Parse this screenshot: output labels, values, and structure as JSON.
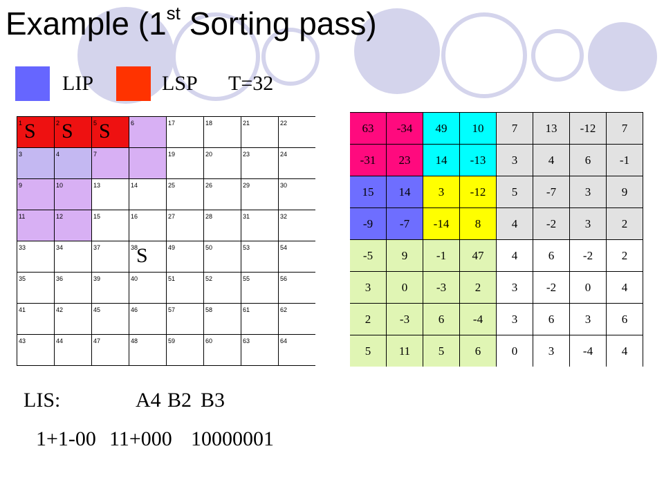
{
  "title": {
    "main": "Example (1",
    "sup": "st",
    "rest": " Sorting pass)"
  },
  "legend": {
    "lip_color": "#6666ff",
    "lsp_color": "#ff3300",
    "lip_label": "LIP",
    "lsp_label": "LSP",
    "threshold": "T=32"
  },
  "left_grid": {
    "rows": [
      [
        {
          "n": "1",
          "s": "S",
          "c": "#ee1111"
        },
        {
          "n": "2",
          "s": "S",
          "c": "#ee1111"
        },
        {
          "n": "5",
          "s": "S",
          "c": "#ee1111"
        },
        {
          "n": "6",
          "s": "",
          "c": "#d8b0f4"
        },
        {
          "n": "17",
          "s": "",
          "c": "#ffffff"
        },
        {
          "n": "18",
          "s": "",
          "c": "#ffffff"
        },
        {
          "n": "21",
          "s": "",
          "c": "#ffffff"
        },
        {
          "n": "22",
          "s": "",
          "c": "#ffffff"
        }
      ],
      [
        {
          "n": "3",
          "s": "",
          "c": "#c4b8f2"
        },
        {
          "n": "4",
          "s": "",
          "c": "#c4b8f2"
        },
        {
          "n": "7",
          "s": "",
          "c": "#d8b0f4"
        },
        {
          "n": "",
          "s": "",
          "c": "#d8b0f4"
        },
        {
          "n": "19",
          "s": "",
          "c": "#ffffff"
        },
        {
          "n": "20",
          "s": "",
          "c": "#ffffff"
        },
        {
          "n": "23",
          "s": "",
          "c": "#ffffff"
        },
        {
          "n": "24",
          "s": "",
          "c": "#ffffff"
        }
      ],
      [
        {
          "n": "9",
          "s": "",
          "c": "#d8b0f4"
        },
        {
          "n": "10",
          "s": "",
          "c": "#d8b0f4"
        },
        {
          "n": "13",
          "s": "",
          "c": "#ffffff"
        },
        {
          "n": "14",
          "s": "",
          "c": "#ffffff"
        },
        {
          "n": "25",
          "s": "",
          "c": "#ffffff"
        },
        {
          "n": "26",
          "s": "",
          "c": "#ffffff"
        },
        {
          "n": "29",
          "s": "",
          "c": "#ffffff"
        },
        {
          "n": "30",
          "s": "",
          "c": "#ffffff"
        }
      ],
      [
        {
          "n": "11",
          "s": "",
          "c": "#d8b0f4"
        },
        {
          "n": "12",
          "s": "",
          "c": "#d8b0f4"
        },
        {
          "n": "15",
          "s": "",
          "c": "#ffffff"
        },
        {
          "n": "16",
          "s": "",
          "c": "#ffffff"
        },
        {
          "n": "27",
          "s": "",
          "c": "#ffffff"
        },
        {
          "n": "28",
          "s": "",
          "c": "#ffffff"
        },
        {
          "n": "31",
          "s": "",
          "c": "#ffffff"
        },
        {
          "n": "32",
          "s": "",
          "c": "#ffffff"
        }
      ],
      [
        {
          "n": "33",
          "s": "",
          "c": "#ffffff"
        },
        {
          "n": "34",
          "s": "",
          "c": "#ffffff"
        },
        {
          "n": "37",
          "s": "",
          "c": "#ffffff"
        },
        {
          "n": "38",
          "s": "S",
          "c": "#ffffff"
        },
        {
          "n": "49",
          "s": "",
          "c": "#ffffff"
        },
        {
          "n": "50",
          "s": "",
          "c": "#ffffff"
        },
        {
          "n": "53",
          "s": "",
          "c": "#ffffff"
        },
        {
          "n": "54",
          "s": "",
          "c": "#ffffff"
        }
      ],
      [
        {
          "n": "35",
          "s": "",
          "c": "#ffffff"
        },
        {
          "n": "36",
          "s": "",
          "c": "#ffffff"
        },
        {
          "n": "39",
          "s": "",
          "c": "#ffffff"
        },
        {
          "n": "40",
          "s": "",
          "c": "#ffffff"
        },
        {
          "n": "51",
          "s": "",
          "c": "#ffffff"
        },
        {
          "n": "52",
          "s": "",
          "c": "#ffffff"
        },
        {
          "n": "55",
          "s": "",
          "c": "#ffffff"
        },
        {
          "n": "56",
          "s": "",
          "c": "#ffffff"
        }
      ],
      [
        {
          "n": "41",
          "s": "",
          "c": "#ffffff"
        },
        {
          "n": "42",
          "s": "",
          "c": "#ffffff"
        },
        {
          "n": "45",
          "s": "",
          "c": "#ffffff"
        },
        {
          "n": "46",
          "s": "",
          "c": "#ffffff"
        },
        {
          "n": "57",
          "s": "",
          "c": "#ffffff"
        },
        {
          "n": "58",
          "s": "",
          "c": "#ffffff"
        },
        {
          "n": "61",
          "s": "",
          "c": "#ffffff"
        },
        {
          "n": "62",
          "s": "",
          "c": "#ffffff"
        }
      ],
      [
        {
          "n": "43",
          "s": "",
          "c": "#ffffff"
        },
        {
          "n": "44",
          "s": "",
          "c": "#ffffff"
        },
        {
          "n": "47",
          "s": "",
          "c": "#ffffff"
        },
        {
          "n": "48",
          "s": "",
          "c": "#ffffff"
        },
        {
          "n": "59",
          "s": "",
          "c": "#ffffff"
        },
        {
          "n": "60",
          "s": "",
          "c": "#ffffff"
        },
        {
          "n": "63",
          "s": "",
          "c": "#ffffff"
        },
        {
          "n": "64",
          "s": "",
          "c": "#ffffff"
        }
      ]
    ]
  },
  "right_grid": {
    "values": [
      [
        "63",
        "-34",
        "49",
        "10",
        "7",
        "13",
        "-12",
        "7"
      ],
      [
        "-31",
        "23",
        "14",
        "-13",
        "3",
        "4",
        "6",
        "-1"
      ],
      [
        "15",
        "14",
        "3",
        "-12",
        "5",
        "-7",
        "3",
        "9"
      ],
      [
        "-9",
        "-7",
        "-14",
        "8",
        "4",
        "-2",
        "3",
        "2"
      ],
      [
        "-5",
        "9",
        "-1",
        "47",
        "4",
        "6",
        "-2",
        "2"
      ],
      [
        "3",
        "0",
        "-3",
        "2",
        "3",
        "-2",
        "0",
        "4"
      ],
      [
        "2",
        "-3",
        "6",
        "-4",
        "3",
        "6",
        "3",
        "6"
      ],
      [
        "5",
        "11",
        "5",
        "6",
        "0",
        "3",
        "-4",
        "4"
      ]
    ],
    "colors": [
      [
        "#ff0a7e",
        "#ff0a7e",
        "#00ffff",
        "#00ffff",
        "#e2e2e2",
        "#e2e2e2",
        "#e2e2e2",
        "#e2e2e2"
      ],
      [
        "#ff0a7e",
        "#ff0a7e",
        "#00ffff",
        "#00ffff",
        "#e2e2e2",
        "#e2e2e2",
        "#e2e2e2",
        "#e2e2e2"
      ],
      [
        "#6e6eff",
        "#6e6eff",
        "#ffff00",
        "#ffff00",
        "#e2e2e2",
        "#e2e2e2",
        "#e2e2e2",
        "#e2e2e2"
      ],
      [
        "#6e6eff",
        "#6e6eff",
        "#ffff00",
        "#ffff00",
        "#e2e2e2",
        "#e2e2e2",
        "#e2e2e2",
        "#e2e2e2"
      ],
      [
        "#e0f5b4",
        "#e0f5b4",
        "#e0f5b4",
        "#e0f5b4",
        "#ffffff",
        "#ffffff",
        "#ffffff",
        "#ffffff"
      ],
      [
        "#e0f5b4",
        "#e0f5b4",
        "#e0f5b4",
        "#e0f5b4",
        "#ffffff",
        "#ffffff",
        "#ffffff",
        "#ffffff"
      ],
      [
        "#e0f5b4",
        "#e0f5b4",
        "#e0f5b4",
        "#e0f5b4",
        "#ffffff",
        "#ffffff",
        "#ffffff",
        "#ffffff"
      ],
      [
        "#e0f5b4",
        "#e0f5b4",
        "#e0f5b4",
        "#e0f5b4",
        "#ffffff",
        "#ffffff",
        "#ffffff",
        "#ffffff"
      ]
    ]
  },
  "lis": {
    "label": "LIS:",
    "items": [
      "A4",
      "B2",
      "B3"
    ]
  },
  "output_bits": [
    "1+1-00",
    "11+000",
    "10000001"
  ]
}
